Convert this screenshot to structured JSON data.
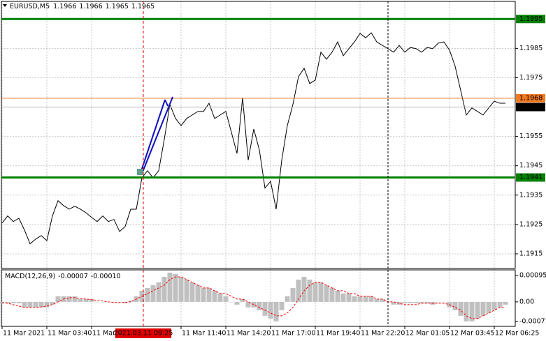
{
  "chart_data": [
    {
      "type": "line",
      "title": "EURUSD,M5",
      "ohlc": [
        1.1966,
        1.1966,
        1.1965,
        1.1965
      ],
      "color": "#000000",
      "grid": true,
      "ylim": [
        1.191,
        1.2001
      ],
      "yticks": [
        1.1985,
        1.1975,
        1.1955,
        1.1945,
        1.1935,
        1.1925,
        1.1915
      ],
      "levels": [
        {
          "value": 1.1995,
          "color": "#008000"
        },
        {
          "value": 1.1968,
          "color": "#f07820"
        },
        {
          "value": 1.1965,
          "color": "#000000"
        },
        {
          "value": 1.1941,
          "color": "#008000"
        }
      ],
      "crosshair": "2021.03.11 09:25",
      "categories": [
        "11 Mar 2021",
        null,
        null,
        null,
        null,
        null,
        null,
        null,
        "11 Mar 03:40",
        null,
        null,
        null,
        null,
        null,
        null,
        null,
        "11 Mar 0",
        null,
        null,
        null,
        null,
        null,
        null,
        null,
        null,
        null,
        null,
        null,
        null,
        null,
        null,
        null,
        "11 Mar 11:40",
        null,
        null,
        null,
        null,
        null,
        null,
        null,
        "11 Mar 14:20",
        null,
        null,
        null,
        null,
        null,
        null,
        null,
        "11 Mar 17:00",
        null,
        null,
        null,
        null,
        null,
        null,
        null,
        "11 Mar 19:40",
        null,
        null,
        null,
        null,
        null,
        null,
        null,
        "11 Mar 22:20",
        null,
        null,
        null,
        null,
        null,
        null,
        null,
        "12 Mar 01:05",
        null,
        null,
        null,
        null,
        null,
        null,
        null,
        "12 Mar 03:45",
        null,
        null,
        null,
        null,
        null,
        null,
        null,
        "12 Mar 06:25",
        null,
        null
      ],
      "values": [
        1.19255,
        1.19279,
        1.1926,
        1.19271,
        1.19231,
        1.19184,
        1.192,
        1.19212,
        1.19195,
        1.19279,
        1.19331,
        1.19314,
        1.19302,
        1.19312,
        1.19302,
        1.1929,
        1.19274,
        1.1926,
        1.19279,
        1.1926,
        1.19267,
        1.19226,
        1.19243,
        1.19302,
        1.19302,
        1.19409,
        1.19433,
        1.19409,
        1.19433,
        1.1954,
        1.19659,
        1.19611,
        1.19587,
        1.19611,
        1.19623,
        1.19635,
        1.19635,
        1.19663,
        1.19611,
        1.19623,
        1.19635,
        1.19564,
        1.19492,
        1.19682,
        1.19469,
        1.19575,
        1.19504,
        1.19374,
        1.19397,
        1.19302,
        1.19469,
        1.19587,
        1.19659,
        1.19754,
        1.19782,
        1.1973,
        1.19742,
        1.19837,
        1.19813,
        1.19837,
        1.19872,
        1.19825,
        1.19849,
        1.19872,
        1.19901,
        1.19886,
        1.19903,
        1.19872,
        1.1986,
        1.19849,
        1.19837,
        1.1986,
        1.19837,
        1.19853,
        1.19849,
        1.19837,
        1.19853,
        1.19849,
        1.19868,
        1.19872,
        1.19844,
        1.19789,
        1.19706,
        1.19623,
        1.19647,
        1.19635,
        1.19623,
        1.19647,
        1.1967,
        1.19663,
        1.19663
      ]
    },
    {
      "type": "macd",
      "title": "MACD(12,26,9)",
      "readings": [
        -7e-05,
        {
          "value": -0.0001,
          "label": "-0.00010"
        }
      ],
      "ylim": [
        -0.00088,
        0.00115
      ],
      "yticks": [
        0.00095,
        {
          "value": 0,
          "label": "0.00"
        },
        -0.00071
      ],
      "series": [
        {
          "kind": "bar",
          "color": "#c0c0c0",
          "values": [
            -5e-05,
            -5e-05,
            -5e-05,
            -5e-05,
            -0.0002,
            -0.0002,
            -0.0002,
            -0.0002,
            -0.0002,
            -0.0001,
            0.0002,
            0.0002,
            0.0002,
            0.0002,
            0.0001,
            0.0001,
            0.0001,
            0,
            0,
            0,
            0,
            0,
            -5e-05,
            5e-05,
            0.0002,
            0.0004,
            0.0005,
            0.0006,
            0.0007,
            0.0009,
            0.00105,
            0.001,
            0.0009,
            0.0008,
            0.0007,
            0.0006,
            0.0005,
            0.0005,
            0.0004,
            0.0003,
            0.0002,
            0,
            -0.0001,
            0.0001,
            -0.0002,
            -0.0002,
            -0.0003,
            -0.0005,
            -0.0006,
            -0.0007,
            -0.0003,
            0.0002,
            0.0005,
            0.0008,
            0.0009,
            0.0008,
            0.0007,
            0.0007,
            0.0006,
            0.0005,
            0.0004,
            0.0003,
            0.0003,
            0.0002,
            0.0002,
            0.0002,
            0.0002,
            0.0001,
            0.0001,
            0,
            -0.0001,
            -0.0001,
            -5e-05,
            -5e-05,
            -5e-05,
            -5e-05,
            -5e-05,
            -0.0001,
            0,
            0,
            -0.0002,
            -0.0003,
            -0.0005,
            -0.0007,
            -0.0007,
            -0.0006,
            -0.0005,
            -0.0004,
            -0.0003,
            -0.0002,
            -0.0001
          ]
        },
        {
          "kind": "line",
          "color": "#ff0000",
          "values": [
            -3e-05,
            -5e-05,
            -0.0001,
            -0.00015,
            -0.0002,
            -0.0002,
            -0.0002,
            -0.00018,
            -0.00015,
            -0.0001,
            0,
            0.0001,
            0.00015,
            0.00015,
            0.00012,
            0.0001,
            8e-05,
            5e-05,
            3e-05,
            0,
            -2e-05,
            -3e-05,
            -2e-05,
            0,
            0.0001,
            0.0002,
            0.0003,
            0.0004,
            0.0005,
            0.0006,
            0.0008,
            0.0009,
            0.0009,
            0.0008,
            0.0007,
            0.0006,
            0.0005,
            0.0005,
            0.0004,
            0.0003,
            0.0003,
            0.0002,
            0.0001,
            0.0001,
            0,
            -0.0001,
            -0.0002,
            -0.0003,
            -0.0004,
            -0.0005,
            -0.0005,
            -0.0004,
            -0.0002,
            0.0001,
            0.0004,
            0.0006,
            0.0007,
            0.0007,
            0.0006,
            0.0005,
            0.0004,
            0.0004,
            0.0003,
            0.0003,
            0.0002,
            0.0002,
            0.0002,
            0.0001,
            0.0001,
            0,
            0,
            -5e-05,
            -0.0001,
            -0.0001,
            -0.0001,
            -5e-05,
            -5e-05,
            -5e-05,
            -5e-05,
            -5e-05,
            -0.0001,
            -0.0002,
            -0.0003,
            -0.0005,
            -0.0006,
            -0.0006,
            -0.0005,
            -0.0004,
            -0.0003,
            -0.0002,
            -0.0002
          ]
        }
      ]
    }
  ]
}
